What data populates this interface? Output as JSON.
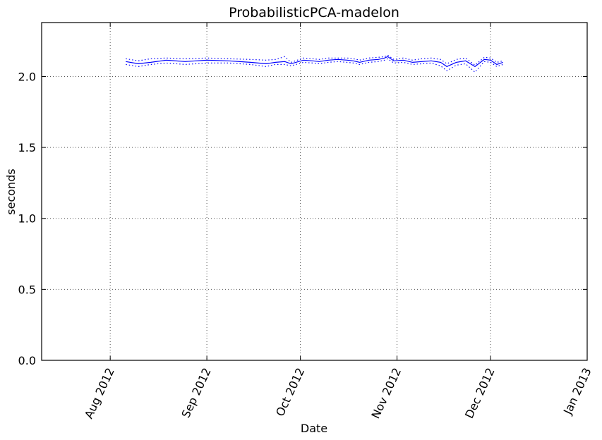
{
  "chart_data": {
    "type": "line",
    "title": "ProbabilisticPCA-madelon",
    "xlabel": "Date",
    "ylabel": "seconds",
    "xlim": [
      "2012-07-10",
      "2013-01-01"
    ],
    "ylim": [
      0.0,
      2.38
    ],
    "grid": true,
    "x_ticks": [
      {
        "date": "2012-08-01",
        "label": "Aug 2012"
      },
      {
        "date": "2012-09-01",
        "label": "Sep 2012"
      },
      {
        "date": "2012-10-01",
        "label": "Oct 2012"
      },
      {
        "date": "2012-11-01",
        "label": "Nov 2012"
      },
      {
        "date": "2012-12-01",
        "label": "Dec 2012"
      },
      {
        "date": "2013-01-01",
        "label": "Jan 2013"
      }
    ],
    "y_ticks": [
      {
        "value": 0.0,
        "label": "0.0"
      },
      {
        "value": 0.5,
        "label": "0.5"
      },
      {
        "value": 1.0,
        "label": "1.0"
      },
      {
        "value": 1.5,
        "label": "1.5"
      },
      {
        "value": 2.0,
        "label": "2.0"
      }
    ],
    "colors": {
      "series": "#0000ff",
      "grid": "#555555",
      "axes": "#000000"
    },
    "x": [
      "2012-08-06",
      "2012-08-10",
      "2012-08-14",
      "2012-08-19",
      "2012-08-25",
      "2012-09-01",
      "2012-09-08",
      "2012-09-15",
      "2012-09-20",
      "2012-09-23",
      "2012-09-26",
      "2012-09-28",
      "2012-10-02",
      "2012-10-05",
      "2012-10-07",
      "2012-10-10",
      "2012-10-13",
      "2012-10-16",
      "2012-10-18",
      "2012-10-20",
      "2012-10-23",
      "2012-10-26",
      "2012-10-28",
      "2012-10-29",
      "2012-10-31",
      "2012-11-03",
      "2012-11-06",
      "2012-11-09",
      "2012-11-12",
      "2012-11-15",
      "2012-11-17",
      "2012-11-20",
      "2012-11-23",
      "2012-11-26",
      "2012-11-29",
      "2012-12-01",
      "2012-12-03",
      "2012-12-05"
    ],
    "series": [
      {
        "style": "solid",
        "values": [
          2.105,
          2.09,
          2.1,
          2.115,
          2.105,
          2.115,
          2.11,
          2.1,
          2.09,
          2.1,
          2.105,
          2.09,
          2.115,
          2.11,
          2.105,
          2.115,
          2.12,
          2.115,
          2.11,
          2.1,
          2.115,
          2.12,
          2.13,
          2.14,
          2.11,
          2.115,
          2.1,
          2.105,
          2.11,
          2.1,
          2.07,
          2.1,
          2.11,
          2.07,
          2.12,
          2.115,
          2.085,
          2.1
        ]
      },
      {
        "style": "dotted",
        "values": [
          2.125,
          2.11,
          2.125,
          2.13,
          2.125,
          2.13,
          2.125,
          2.12,
          2.115,
          2.12,
          2.14,
          2.1,
          2.13,
          2.125,
          2.12,
          2.13,
          2.13,
          2.13,
          2.125,
          2.115,
          2.13,
          2.135,
          2.14,
          2.15,
          2.12,
          2.13,
          2.115,
          2.125,
          2.13,
          2.12,
          2.09,
          2.12,
          2.13,
          2.08,
          2.135,
          2.13,
          2.1,
          2.11
        ]
      },
      {
        "style": "dotted",
        "values": [
          2.085,
          2.07,
          2.085,
          2.095,
          2.085,
          2.095,
          2.095,
          2.085,
          2.07,
          2.085,
          2.085,
          2.075,
          2.1,
          2.095,
          2.09,
          2.1,
          2.105,
          2.1,
          2.095,
          2.085,
          2.1,
          2.105,
          2.115,
          2.125,
          2.095,
          2.1,
          2.085,
          2.09,
          2.095,
          2.075,
          2.04,
          2.08,
          2.09,
          2.03,
          2.105,
          2.1,
          2.07,
          2.085
        ]
      }
    ]
  }
}
